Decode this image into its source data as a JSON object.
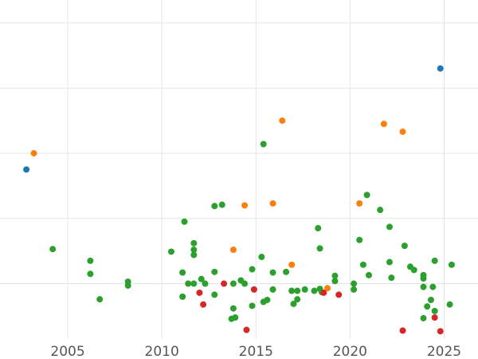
{
  "chart_data": {
    "type": "scatter",
    "title": "",
    "xlabel": "",
    "ylabel": "",
    "xlim": [
      2001.4,
      2026.8
    ],
    "ylim": [
      -0.85,
      4.35
    ],
    "grid": true,
    "x_ticks": [
      2005,
      2010,
      2015,
      2020,
      2025
    ],
    "x_tick_labels": [
      "2005",
      "2010",
      "2015",
      "2020",
      "2025"
    ],
    "y_gridlines": [
      0,
      1,
      2,
      3,
      4
    ],
    "series": [
      {
        "color": "#1f77b4",
        "points": [
          [
            2002.8,
            1.75
          ],
          [
            2024.8,
            3.3
          ]
        ]
      },
      {
        "color": "#ff7f0e",
        "points": [
          [
            2003.2,
            2.0
          ],
          [
            2013.8,
            0.52
          ],
          [
            2014.4,
            1.2
          ],
          [
            2015.9,
            1.23
          ],
          [
            2016.4,
            2.5
          ],
          [
            2016.9,
            0.29
          ],
          [
            2018.8,
            -0.07
          ],
          [
            2020.5,
            1.23
          ],
          [
            2021.8,
            2.45
          ],
          [
            2022.8,
            2.33
          ]
        ]
      },
      {
        "color": "#2ca02c",
        "points": [
          [
            2004.2,
            0.53
          ],
          [
            2006.2,
            0.35
          ],
          [
            2006.2,
            0.15
          ],
          [
            2006.7,
            -0.24
          ],
          [
            2008.2,
            0.03
          ],
          [
            2008.2,
            -0.03
          ],
          [
            2010.5,
            0.49
          ],
          [
            2011.1,
            0.17
          ],
          [
            2011.2,
            0.95
          ],
          [
            2011.1,
            -0.2
          ],
          [
            2011.4,
            0.0
          ],
          [
            2011.7,
            0.0
          ],
          [
            2011.7,
            0.62
          ],
          [
            2011.7,
            0.52
          ],
          [
            2011.7,
            0.44
          ],
          [
            2012.1,
            0.07
          ],
          [
            2012.3,
            0.0
          ],
          [
            2012.8,
            1.19
          ],
          [
            2012.8,
            0.18
          ],
          [
            2012.8,
            -0.17
          ],
          [
            2013.2,
            1.21
          ],
          [
            2013.8,
            0.0
          ],
          [
            2013.8,
            -0.38
          ],
          [
            2013.7,
            -0.54
          ],
          [
            2013.9,
            -0.52
          ],
          [
            2014.2,
            0.05
          ],
          [
            2014.4,
            0.0
          ],
          [
            2014.8,
            0.22
          ],
          [
            2014.8,
            -0.34
          ],
          [
            2015.3,
            0.41
          ],
          [
            2015.4,
            2.14
          ],
          [
            2015.4,
            -0.28
          ],
          [
            2015.6,
            -0.25
          ],
          [
            2015.9,
            0.17
          ],
          [
            2015.9,
            -0.09
          ],
          [
            2016.6,
            0.18
          ],
          [
            2016.9,
            -0.11
          ],
          [
            2017.0,
            -0.31
          ],
          [
            2017.2,
            -0.24
          ],
          [
            2017.2,
            -0.11
          ],
          [
            2017.6,
            -0.09
          ],
          [
            2018.1,
            -0.11
          ],
          [
            2018.3,
            0.85
          ],
          [
            2018.4,
            0.54
          ],
          [
            2018.4,
            -0.08
          ],
          [
            2018.5,
            -0.13
          ],
          [
            2019.2,
            0.12
          ],
          [
            2019.2,
            0.04
          ],
          [
            2020.2,
            0.0
          ],
          [
            2020.2,
            -0.09
          ],
          [
            2020.5,
            0.67
          ],
          [
            2020.7,
            0.29
          ],
          [
            2020.9,
            1.36
          ],
          [
            2021.0,
            0.13
          ],
          [
            2021.6,
            1.13
          ],
          [
            2022.1,
            0.87
          ],
          [
            2022.1,
            0.33
          ],
          [
            2022.2,
            0.09
          ],
          [
            2022.9,
            0.58
          ],
          [
            2023.2,
            0.26
          ],
          [
            2023.4,
            0.21
          ],
          [
            2023.9,
            0.13
          ],
          [
            2023.9,
            0.08
          ],
          [
            2023.9,
            -0.05
          ],
          [
            2023.9,
            -0.53
          ],
          [
            2024.1,
            -0.35
          ],
          [
            2024.3,
            -0.25
          ],
          [
            2024.4,
            -0.05
          ],
          [
            2024.5,
            -0.42
          ],
          [
            2024.5,
            0.35
          ],
          [
            2025.3,
            -0.32
          ],
          [
            2025.4,
            0.29
          ]
        ]
      },
      {
        "color": "#d62728",
        "points": [
          [
            2012.0,
            -0.14
          ],
          [
            2012.2,
            -0.32
          ],
          [
            2013.3,
            0.0
          ],
          [
            2014.5,
            -0.71
          ],
          [
            2014.9,
            -0.09
          ],
          [
            2018.6,
            -0.14
          ],
          [
            2019.4,
            -0.17
          ],
          [
            2022.8,
            -0.72
          ],
          [
            2024.5,
            -0.52
          ],
          [
            2024.8,
            -0.73
          ]
        ]
      }
    ]
  }
}
